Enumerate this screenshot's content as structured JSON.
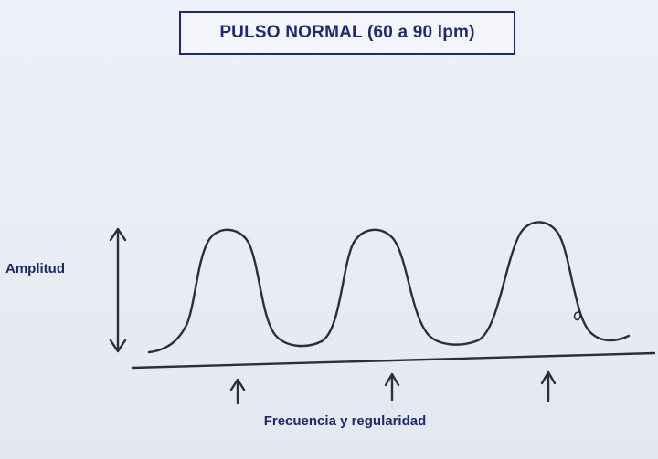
{
  "title": "PULSO NORMAL (60 a 90 lpm)",
  "labels": {
    "amplitude": "Amplitud",
    "frequency": "Frecuencia y regularidad"
  },
  "colors": {
    "text_navy": "#1e2a6b",
    "ink": "#2b2f3a",
    "background": "#eef1f7"
  },
  "icons": {
    "beat_marker": "arrow-up-icon",
    "amplitude_marker": "double-arrow-vertical-icon"
  }
}
